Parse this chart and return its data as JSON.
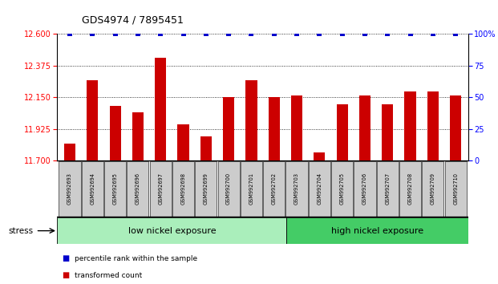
{
  "title": "GDS4974 / 7895451",
  "samples": [
    "GSM992693",
    "GSM992694",
    "GSM992695",
    "GSM992696",
    "GSM992697",
    "GSM992698",
    "GSM992699",
    "GSM992700",
    "GSM992701",
    "GSM992702",
    "GSM992703",
    "GSM992704",
    "GSM992705",
    "GSM992706",
    "GSM992707",
    "GSM992708",
    "GSM992709",
    "GSM992710"
  ],
  "bar_values": [
    11.82,
    12.27,
    12.09,
    12.04,
    12.43,
    11.96,
    11.87,
    12.15,
    12.27,
    12.15,
    12.16,
    11.76,
    12.1,
    12.16,
    12.1,
    12.19,
    12.19,
    12.16
  ],
  "percentile_values": [
    100,
    100,
    100,
    100,
    100,
    100,
    100,
    100,
    100,
    100,
    100,
    100,
    100,
    100,
    100,
    100,
    100,
    100
  ],
  "ylim_left": [
    11.7,
    12.6
  ],
  "ylim_right": [
    0,
    100
  ],
  "yticks_left": [
    11.7,
    11.925,
    12.15,
    12.375,
    12.6
  ],
  "yticks_right": [
    0,
    25,
    50,
    75,
    100
  ],
  "bar_color": "#cc0000",
  "percentile_color": "#0000cc",
  "group1_label": "low nickel exposure",
  "group2_label": "high nickel exposure",
  "group1_count": 10,
  "stress_label": "stress",
  "legend_bar": "transformed count",
  "legend_pct": "percentile rank within the sample",
  "bg_color": "#ffffff",
  "group_bg1": "#aaeebb",
  "group_bg2": "#44cc66",
  "tick_bg": "#cccccc",
  "bar_width": 0.5
}
